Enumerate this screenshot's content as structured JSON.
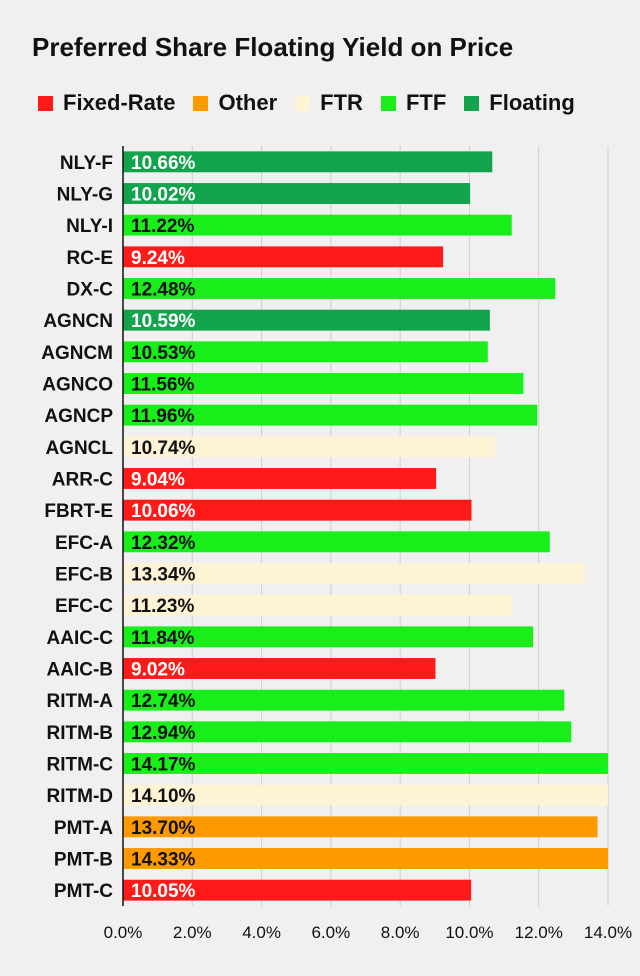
{
  "chart_data": {
    "type": "bar",
    "orientation": "horizontal",
    "title": "Preferred Share Floating Yield on Price",
    "xlabel": "",
    "ylabel": "",
    "xlim": [
      0,
      14
    ],
    "x_ticks": [
      "0.0%",
      "2.0%",
      "4.0%",
      "6.0%",
      "8.0%",
      "10.0%",
      "12.0%",
      "14.0%"
    ],
    "grid": "vertical",
    "legend_position": "top",
    "legend": [
      {
        "label": "Fixed-Rate",
        "color": "#ff1a1a"
      },
      {
        "label": "Other",
        "color": "#ff9900"
      },
      {
        "label": "FTR",
        "color": "#fff3d6"
      },
      {
        "label": "FTF",
        "color": "#1aee1a"
      },
      {
        "label": "Floating",
        "color": "#12a34d"
      }
    ],
    "categories": [
      "NLY-F",
      "NLY-G",
      "NLY-I",
      "RC-E",
      "DX-C",
      "AGNCN",
      "AGNCM",
      "AGNCO",
      "AGNCP",
      "AGNCL",
      "ARR-C",
      "FBRT-E",
      "EFC-A",
      "EFC-B",
      "EFC-C",
      "AAIC-C",
      "AAIC-B",
      "RITM-A",
      "RITM-B",
      "RITM-C",
      "RITM-D",
      "PMT-A",
      "PMT-B",
      "PMT-C"
    ],
    "values": [
      10.66,
      10.02,
      11.22,
      9.24,
      12.48,
      10.59,
      10.53,
      11.56,
      11.96,
      10.74,
      9.04,
      10.06,
      12.32,
      13.34,
      11.23,
      11.84,
      9.02,
      12.74,
      12.94,
      14.17,
      14.1,
      13.7,
      14.33,
      10.05
    ],
    "value_labels": [
      "10.66%",
      "10.02%",
      "11.22%",
      "9.24%",
      "12.48%",
      "10.59%",
      "10.53%",
      "11.56%",
      "11.96%",
      "10.74%",
      "9.04%",
      "10.06%",
      "12.32%",
      "13.34%",
      "11.23%",
      "11.84%",
      "9.02%",
      "12.74%",
      "12.94%",
      "14.17%",
      "14.10%",
      "13.70%",
      "14.33%",
      "10.05%"
    ],
    "groups": [
      "Floating",
      "Floating",
      "FTF",
      "Fixed-Rate",
      "FTF",
      "Floating",
      "FTF",
      "FTF",
      "FTF",
      "FTR",
      "Fixed-Rate",
      "Fixed-Rate",
      "FTF",
      "FTR",
      "FTR",
      "FTF",
      "Fixed-Rate",
      "FTF",
      "FTF",
      "FTF",
      "FTR",
      "Other",
      "Other",
      "Fixed-Rate"
    ]
  }
}
